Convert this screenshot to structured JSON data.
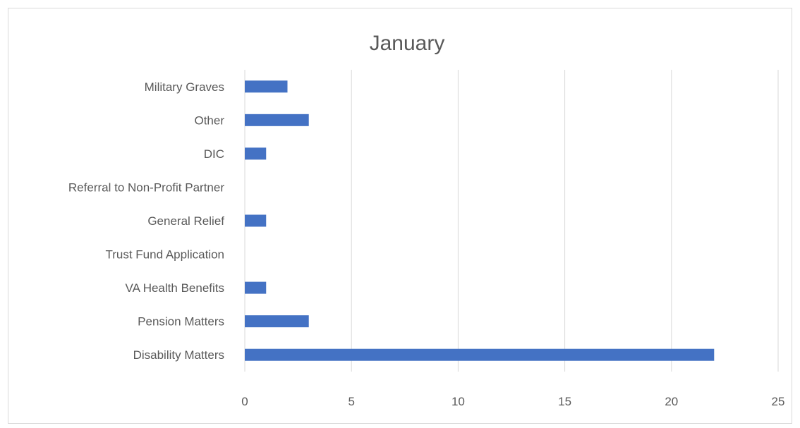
{
  "chart_data": {
    "type": "bar",
    "orientation": "horizontal",
    "title": "January",
    "categories": [
      "Disability Matters",
      "Pension Matters",
      "VA Health Benefits",
      "Trust Fund Application",
      "General Relief",
      "Referral to Non-Profit Partner",
      "DIC",
      "Other",
      "Military Graves"
    ],
    "values": [
      22,
      3,
      1,
      0,
      1,
      0,
      1,
      3,
      2
    ],
    "xlim": [
      0,
      25
    ],
    "xticks": [
      0,
      5,
      10,
      15,
      20,
      25
    ],
    "grid": true,
    "legend": "none",
    "colors": {
      "bar": "#4472c4",
      "grid": "#d9d9d9",
      "text": "#595959"
    }
  }
}
